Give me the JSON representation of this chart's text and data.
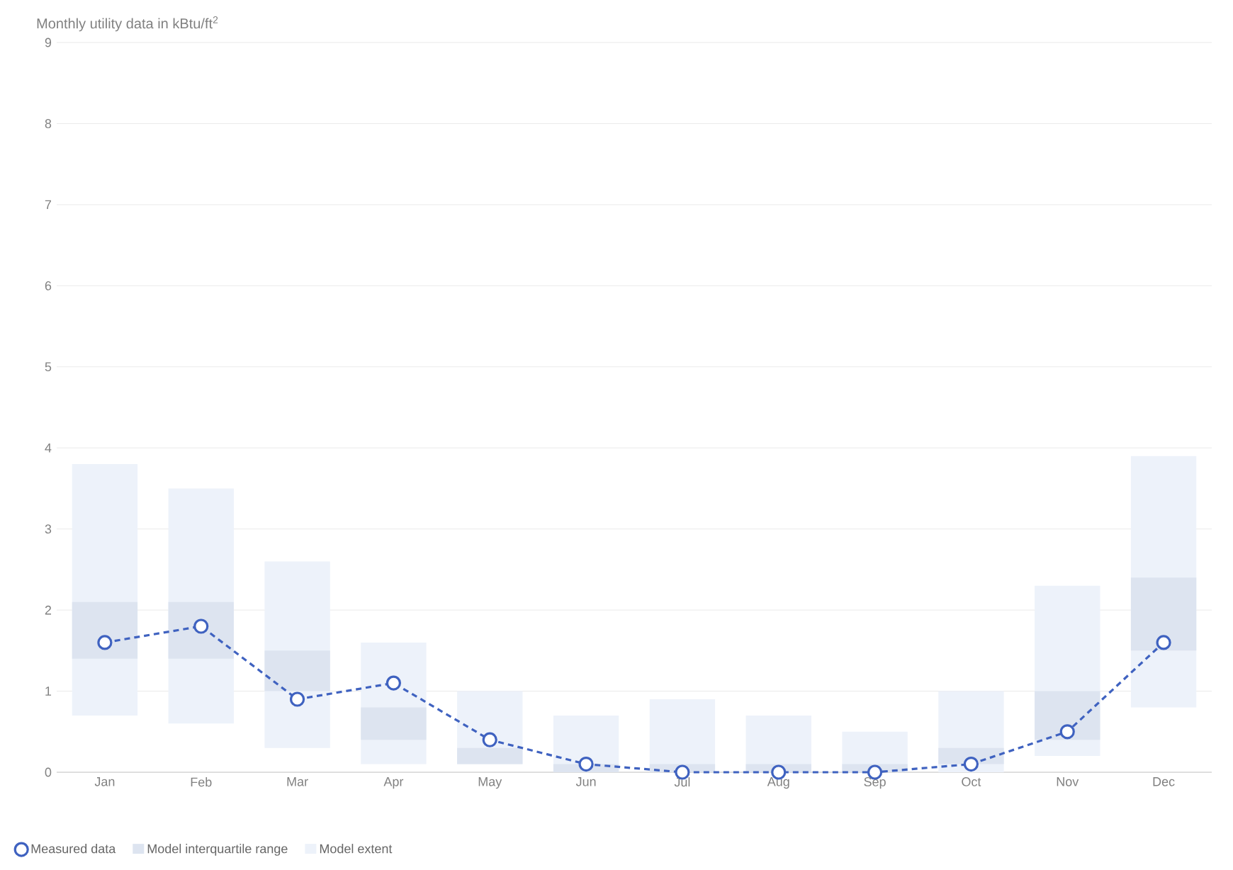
{
  "chart_data": {
    "type": "bar",
    "title": "Monthly utility data in kBtu/ft$^{2}$",
    "categories": [
      "Jan",
      "Feb",
      "Mar",
      "Apr",
      "May",
      "Jun",
      "Jul",
      "Aug",
      "Sep",
      "Oct",
      "Nov",
      "Dec"
    ],
    "series": [
      {
        "name": "Model extent",
        "color": "#edf2fa",
        "base": [
          0.7,
          0.6,
          0.3,
          0.1,
          0.1,
          0,
          0,
          0,
          0,
          0,
          0.2,
          0.8
        ],
        "values": [
          3.1,
          2.9,
          2.3,
          1.5,
          0.9,
          0.7,
          0.9,
          0.7,
          0.5,
          1.0,
          2.1,
          3.1
        ]
      },
      {
        "name": "Model interquartile range",
        "color": "#dde4f0",
        "base": [
          1.4,
          1.4,
          1.0,
          0.4,
          0.1,
          0,
          0,
          0,
          0,
          0.1,
          0.4,
          1.5
        ],
        "values": [
          0.7,
          0.7,
          0.5,
          0.4,
          0.2,
          0.1,
          0.1,
          0.1,
          0.1,
          0.2,
          0.6,
          0.9
        ]
      },
      {
        "name": "Measured data",
        "type": "line",
        "color": "#3f62c0",
        "marker": "circle",
        "line_style": "dashed",
        "values": [
          1.6,
          1.8,
          0.9,
          1.1,
          0.4,
          0.1,
          0,
          0,
          0,
          0.1,
          0.5,
          1.6
        ]
      }
    ],
    "ylim": [
      0,
      9
    ],
    "yticks": [
      0,
      1,
      2,
      3,
      4,
      5,
      6,
      7,
      8,
      9
    ],
    "grid": "y",
    "legend": "bottom left"
  }
}
